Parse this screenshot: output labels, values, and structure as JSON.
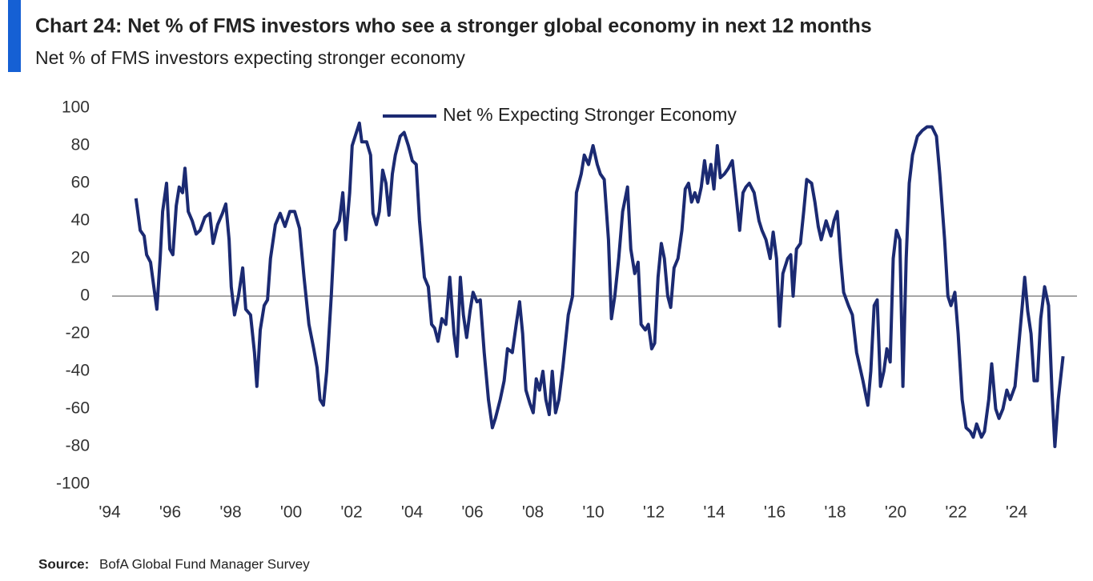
{
  "chart_data": {
    "type": "line",
    "title": "Chart 24: Net % of FMS investors who see a stronger global economy in next 12 months",
    "subtitle": "Net % of FMS investors expecting stronger economy",
    "source_label": "Source:",
    "source_text": "BofA Global Fund Manager Survey",
    "legend": "top",
    "x": [
      1994.87,
      1995.01,
      1995.14,
      1995.22,
      1995.35,
      1995.46,
      1995.56,
      1995.67,
      1995.75,
      1995.88,
      1995.99,
      1996.09,
      1996.2,
      1996.3,
      1996.41,
      1996.49,
      1996.6,
      1996.73,
      1996.86,
      1996.99,
      1997.15,
      1997.31,
      1997.42,
      1997.57,
      1997.73,
      1997.84,
      1997.95,
      1998.02,
      1998.13,
      1998.26,
      1998.4,
      1998.5,
      1998.66,
      1998.79,
      1998.87,
      1998.98,
      1999.11,
      1999.22,
      1999.32,
      1999.48,
      1999.64,
      1999.8,
      1999.96,
      2000.12,
      2000.28,
      2000.43,
      2000.59,
      2000.75,
      2000.86,
      2000.96,
      2001.07,
      2001.18,
      2001.33,
      2001.44,
      2001.6,
      2001.71,
      2001.81,
      2001.94,
      2002.02,
      2002.18,
      2002.26,
      2002.34,
      2002.5,
      2002.63,
      2002.71,
      2002.82,
      2002.92,
      2003.03,
      2003.14,
      2003.24,
      2003.35,
      2003.45,
      2003.61,
      2003.74,
      2003.88,
      2004.01,
      2004.14,
      2004.25,
      2004.41,
      2004.54,
      2004.65,
      2004.75,
      2004.86,
      2004.99,
      2005.12,
      2005.25,
      2005.39,
      2005.49,
      2005.6,
      2005.7,
      2005.81,
      2005.92,
      2006.02,
      2006.15,
      2006.26,
      2006.39,
      2006.53,
      2006.66,
      2006.76,
      2006.92,
      2007.05,
      2007.16,
      2007.32,
      2007.45,
      2007.56,
      2007.66,
      2007.77,
      2007.9,
      2008.01,
      2008.11,
      2008.22,
      2008.33,
      2008.43,
      2008.54,
      2008.64,
      2008.75,
      2008.86,
      2008.99,
      2009.17,
      2009.31,
      2009.44,
      2009.6,
      2009.7,
      2009.84,
      2009.99,
      2010.13,
      2010.23,
      2010.36,
      2010.5,
      2010.6,
      2010.71,
      2010.84,
      2010.97,
      2011.13,
      2011.24,
      2011.37,
      2011.48,
      2011.58,
      2011.72,
      2011.82,
      2011.93,
      2012.03,
      2012.14,
      2012.25,
      2012.35,
      2012.46,
      2012.56,
      2012.67,
      2012.8,
      2012.93,
      2013.04,
      2013.15,
      2013.25,
      2013.36,
      2013.46,
      2013.57,
      2013.68,
      2013.78,
      2013.89,
      2013.99,
      2014.1,
      2014.2,
      2014.34,
      2014.47,
      2014.6,
      2014.73,
      2014.84,
      2014.95,
      2015.05,
      2015.16,
      2015.32,
      2015.48,
      2015.58,
      2015.71,
      2015.85,
      2015.95,
      2016.06,
      2016.16,
      2016.27,
      2016.43,
      2016.53,
      2016.61,
      2016.72,
      2016.85,
      2016.96,
      2017.06,
      2017.22,
      2017.33,
      2017.44,
      2017.54,
      2017.7,
      2017.86,
      2017.96,
      2018.07,
      2018.18,
      2018.28,
      2018.44,
      2018.57,
      2018.71,
      2018.92,
      2019.08,
      2019.18,
      2019.29,
      2019.39,
      2019.5,
      2019.61,
      2019.71,
      2019.82,
      2019.92,
      2020.03,
      2020.14,
      2020.24,
      2020.35,
      2020.45,
      2020.56,
      2020.72,
      2020.88,
      2021.04,
      2021.2,
      2021.35,
      2021.46,
      2021.62,
      2021.73,
      2021.83,
      2021.96,
      2022.07,
      2022.2,
      2022.33,
      2022.47,
      2022.57,
      2022.68,
      2022.84,
      2022.94,
      2023.08,
      2023.18,
      2023.31,
      2023.42,
      2023.55,
      2023.68,
      2023.79,
      2023.95,
      2024.08,
      2024.19,
      2024.27,
      2024.37,
      2024.48,
      2024.58,
      2024.69,
      2024.8,
      2024.93,
      2025.06,
      2025.17,
      2025.27,
      2025.38,
      2025.54
    ],
    "series": [
      {
        "name": "Net % Expecting Stronger Economy",
        "color": "#1b2a72",
        "values": [
          52,
          35,
          32,
          22,
          18,
          5,
          -7,
          20,
          45,
          60,
          25,
          22,
          48,
          58,
          55,
          68,
          45,
          40,
          33,
          35,
          42,
          44,
          28,
          38,
          44,
          49,
          30,
          5,
          -10,
          0,
          15,
          -7,
          -10,
          -30,
          -48,
          -18,
          -5,
          -2,
          20,
          38,
          44,
          37,
          45,
          45,
          36,
          10,
          -15,
          -28,
          -38,
          -55,
          -58,
          -40,
          0,
          35,
          40,
          55,
          30,
          55,
          80,
          88,
          92,
          82,
          82,
          75,
          44,
          38,
          45,
          67,
          60,
          43,
          65,
          75,
          85,
          87,
          80,
          72,
          70,
          40,
          10,
          5,
          -15,
          -17,
          -24,
          -12,
          -15,
          10,
          -20,
          -32,
          10,
          -10,
          -22,
          -8,
          2,
          -3,
          -2,
          -30,
          -55,
          -70,
          -65,
          -55,
          -45,
          -28,
          -30,
          -15,
          -3,
          -20,
          -50,
          -57,
          -62,
          -44,
          -50,
          -40,
          -55,
          -63,
          -40,
          -62,
          -55,
          -38,
          -10,
          0,
          55,
          65,
          75,
          70,
          80,
          70,
          65,
          62,
          30,
          -12,
          0,
          20,
          45,
          58,
          25,
          12,
          18,
          -15,
          -18,
          -15,
          -28,
          -25,
          10,
          28,
          20,
          0,
          -6,
          15,
          20,
          35,
          57,
          60,
          50,
          55,
          50,
          58,
          72,
          60,
          70,
          57,
          80,
          63,
          65,
          68,
          72,
          52,
          35,
          55,
          58,
          60,
          55,
          40,
          35,
          30,
          20,
          34,
          20,
          -16,
          12,
          20,
          22,
          0,
          25,
          28,
          45,
          62,
          60,
          50,
          37,
          30,
          40,
          32,
          40,
          45,
          20,
          2,
          -5,
          -10,
          -30,
          -45,
          -58,
          -40,
          -5,
          -2,
          -48,
          -40,
          -28,
          -35,
          20,
          35,
          30,
          -48,
          20,
          60,
          75,
          85,
          88,
          90,
          90,
          85,
          65,
          30,
          0,
          -5,
          2,
          -20,
          -55,
          -70,
          -72,
          -75,
          -68,
          -75,
          -72,
          -55,
          -36,
          -60,
          -65,
          -60,
          -50,
          -55,
          -48,
          -25,
          -5,
          10,
          -8,
          -20,
          -45,
          -45,
          -12,
          5,
          -5,
          -50,
          -80,
          -55,
          -32
        ]
      }
    ],
    "xlim": [
      1994,
      2026
    ],
    "xticks": [
      {
        "value": 1994,
        "label": "'94"
      },
      {
        "value": 1996,
        "label": "'96"
      },
      {
        "value": 1998,
        "label": "'98"
      },
      {
        "value": 2000,
        "label": "'00"
      },
      {
        "value": 2002,
        "label": "'02"
      },
      {
        "value": 2004,
        "label": "'04"
      },
      {
        "value": 2006,
        "label": "'06"
      },
      {
        "value": 2008,
        "label": "'08"
      },
      {
        "value": 2010,
        "label": "'10"
      },
      {
        "value": 2012,
        "label": "'12"
      },
      {
        "value": 2014,
        "label": "'14"
      },
      {
        "value": 2016,
        "label": "'16"
      },
      {
        "value": 2018,
        "label": "'18"
      },
      {
        "value": 2020,
        "label": "'20"
      },
      {
        "value": 2022,
        "label": "'22"
      },
      {
        "value": 2024,
        "label": "'24"
      }
    ],
    "ylim": [
      -100,
      100
    ],
    "yticks": [
      -100,
      -80,
      -60,
      -40,
      -20,
      0,
      20,
      40,
      60,
      80,
      100
    ]
  }
}
